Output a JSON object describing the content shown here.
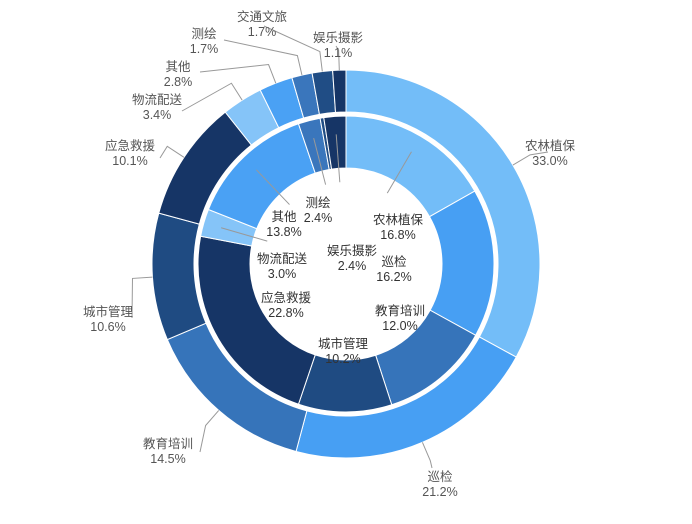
{
  "chart_data": {
    "type": "pie",
    "subtype": "nested-donut",
    "rings": [
      {
        "name": "outer",
        "slices": [
          {
            "label": "农林植保",
            "value": 33.0,
            "pct": "33.0%",
            "color": "#73bdf8"
          },
          {
            "label": "巡检",
            "value": 21.2,
            "pct": "21.2%",
            "color": "#479ff3"
          },
          {
            "label": "教育培训",
            "value": 14.5,
            "pct": "14.5%",
            "color": "#3674ba"
          },
          {
            "label": "城市管理",
            "value": 10.6,
            "pct": "10.6%",
            "color": "#1f4b82"
          },
          {
            "label": "应急救援",
            "value": 10.1,
            "pct": "10.1%",
            "color": "#163566"
          },
          {
            "label": "物流配送",
            "value": 3.4,
            "pct": "3.4%",
            "color": "#85c4f8"
          },
          {
            "label": "其他",
            "value": 2.8,
            "pct": "2.8%",
            "color": "#4aa1f4"
          },
          {
            "label": "测绘",
            "value": 1.7,
            "pct": "1.7%",
            "color": "#3a76bc"
          },
          {
            "label": "交通文旅",
            "value": 1.7,
            "pct": "1.7%",
            "color": "#204d85"
          },
          {
            "label": "娱乐摄影",
            "value": 1.1,
            "pct": "1.1%",
            "color": "#163566"
          }
        ]
      },
      {
        "name": "inner",
        "slices": [
          {
            "label": "农林植保",
            "value": 16.8,
            "pct": "16.8%",
            "color": "#73bdf8"
          },
          {
            "label": "巡检",
            "value": 16.2,
            "pct": "16.2%",
            "color": "#479ff3"
          },
          {
            "label": "教育培训",
            "value": 12.0,
            "pct": "12.0%",
            "color": "#3674ba"
          },
          {
            "label": "城市管理",
            "value": 10.2,
            "pct": "10.2%",
            "color": "#1f4b82"
          },
          {
            "label": "应急救援",
            "value": 22.8,
            "pct": "22.8%",
            "color": "#163566"
          },
          {
            "label": "物流配送",
            "value": 3.0,
            "pct": "3.0%",
            "color": "#85c4f8"
          },
          {
            "label": "其他",
            "value": 13.8,
            "pct": "13.8%",
            "color": "#4aa1f4"
          },
          {
            "label": "测绘",
            "value": 2.4,
            "pct": "2.4%",
            "color": "#3a76bc"
          },
          {
            "label": "交通文旅",
            "value": 0.4,
            "pct": "",
            "color": "#204d85"
          },
          {
            "label": "娱乐摄影",
            "value": 2.4,
            "pct": "2.4%",
            "color": "#163566"
          }
        ]
      }
    ],
    "legend": "none"
  }
}
